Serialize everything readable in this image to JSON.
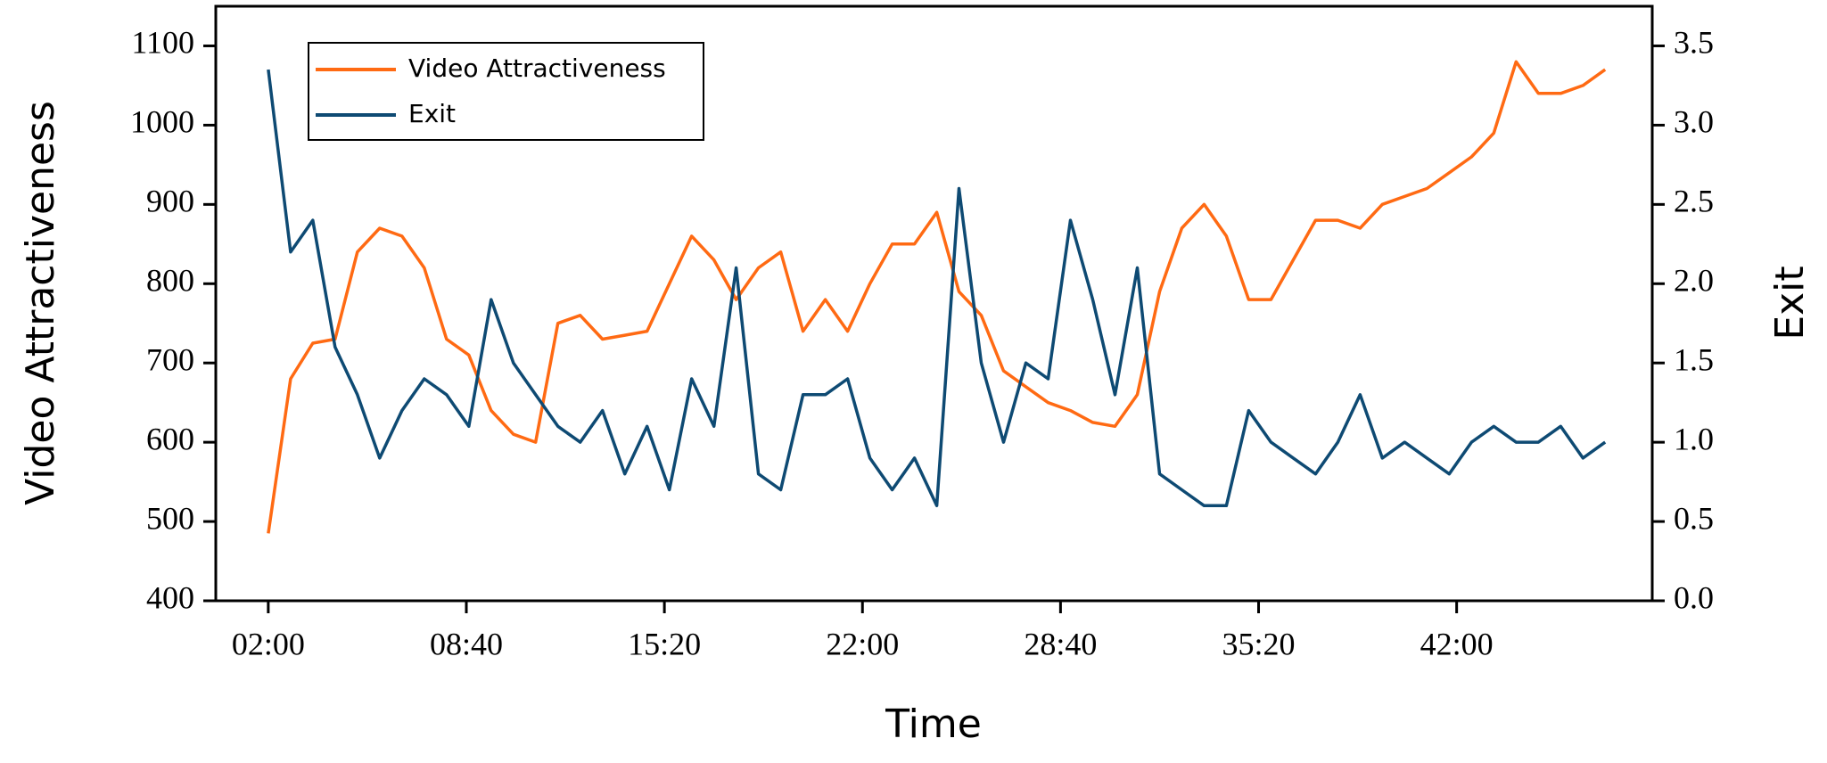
{
  "chart_data": {
    "type": "line",
    "x_label": "Time",
    "y_label": "Video Attractiveness",
    "y2_label": "Exit",
    "x": [
      120,
      165,
      210,
      255,
      300,
      345,
      390,
      435,
      480,
      525,
      570,
      615,
      660,
      705,
      750,
      795,
      840,
      885,
      930,
      975,
      1020,
      1065,
      1110,
      1155,
      1200,
      1245,
      1290,
      1335,
      1380,
      1425,
      1470,
      1515,
      1560,
      1605,
      1650,
      1695,
      1740,
      1785,
      1830,
      1875,
      1920,
      1965,
      2010,
      2055,
      2100,
      2145,
      2190,
      2235,
      2280,
      2325,
      2370,
      2415,
      2460,
      2505,
      2550,
      2595,
      2640,
      2685,
      2730,
      2775,
      2820
    ],
    "series": [
      {
        "name": "Video Attractiveness",
        "color": "#ff6a13",
        "values": [
          485,
          680,
          725,
          730,
          840,
          870,
          860,
          820,
          730,
          710,
          640,
          610,
          600,
          750,
          760,
          730,
          735,
          740,
          800,
          860,
          830,
          780,
          820,
          840,
          740,
          780,
          740,
          800,
          850,
          850,
          890,
          790,
          760,
          690,
          670,
          650,
          640,
          625,
          620,
          660,
          790,
          870,
          900,
          860,
          780,
          780,
          830,
          880,
          880,
          870,
          900,
          910,
          920,
          940,
          960,
          990,
          1080,
          1040,
          1040,
          1050,
          1070
        ]
      },
      {
        "name": "Exit",
        "color": "#0e4a73",
        "axis": "y2",
        "values": [
          3.35,
          2.2,
          2.4,
          1.6,
          1.3,
          0.9,
          1.2,
          1.4,
          1.3,
          1.1,
          1.9,
          1.5,
          1.3,
          1.1,
          1.0,
          1.2,
          0.8,
          1.1,
          0.7,
          1.4,
          1.1,
          2.1,
          0.8,
          0.7,
          1.3,
          1.3,
          1.4,
          0.9,
          0.7,
          0.9,
          0.6,
          2.6,
          1.5,
          1.0,
          1.5,
          1.4,
          2.4,
          1.9,
          1.3,
          2.1,
          0.8,
          0.7,
          0.6,
          0.6,
          1.2,
          1.0,
          0.9,
          0.8,
          1.0,
          1.3,
          0.9,
          1.0,
          0.9,
          0.8,
          1.0,
          1.1,
          1.0,
          1.0,
          1.1,
          0.9,
          1.0
        ]
      }
    ],
    "xlim": [
      14,
      2915
    ],
    "xticks": [
      {
        "value": 120,
        "label": "02:00"
      },
      {
        "value": 520,
        "label": "08:40"
      },
      {
        "value": 920,
        "label": "15:20"
      },
      {
        "value": 1320,
        "label": "22:00"
      },
      {
        "value": 1720,
        "label": "28:40"
      },
      {
        "value": 2120,
        "label": "35:20"
      },
      {
        "value": 2520,
        "label": "42:00"
      }
    ],
    "ylim": [
      400,
      1150
    ],
    "yticks": [
      400,
      500,
      600,
      700,
      800,
      900,
      1000,
      1100
    ],
    "y2lim": [
      0,
      3.75
    ],
    "y2ticks": [
      {
        "value": 0,
        "label": "0.0"
      },
      {
        "value": 0.5,
        "label": "0.5"
      },
      {
        "value": 1,
        "label": "1.0"
      },
      {
        "value": 1.5,
        "label": "1.5"
      },
      {
        "value": 2,
        "label": "2.0"
      },
      {
        "value": 2.5,
        "label": "2.5"
      },
      {
        "value": 3,
        "label": "3.0"
      },
      {
        "value": 3.5,
        "label": "3.5"
      }
    ],
    "legend": "upper left"
  }
}
